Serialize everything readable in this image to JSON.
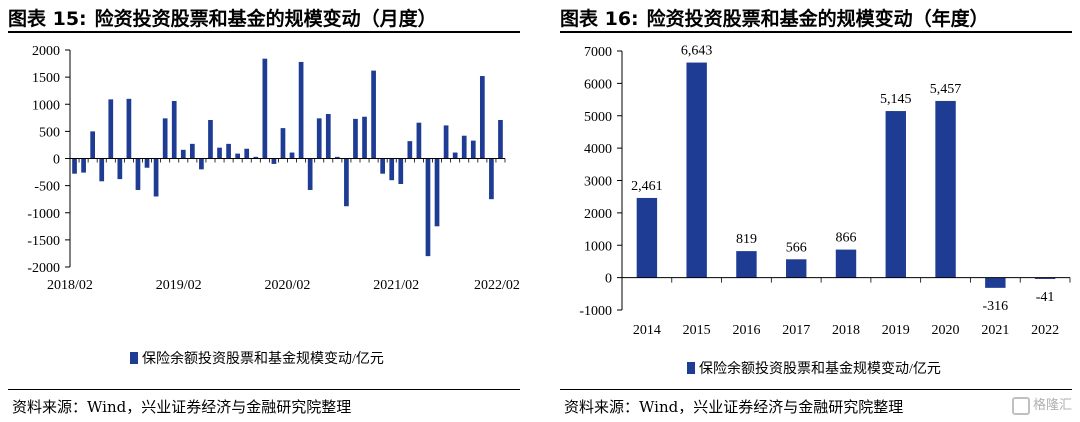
{
  "left": {
    "figure_label": "图表 15:",
    "figure_title": "险资投资股票和基金的规模变动（月度）",
    "source": "资料来源：Wind，兴业证券经济与金融研究院整理"
  },
  "right": {
    "figure_label": "图表 16:",
    "figure_title": "险资投资股票和基金的规模变动（年度）",
    "source": "资料来源：Wind，兴业证券经济与金融研究院整理"
  },
  "watermark": "格隆汇",
  "colors": {
    "bar": "#1f3c94",
    "axis": "#000000",
    "text": "#000000"
  },
  "chart_data": [
    {
      "type": "bar",
      "series": [
        {
          "name": "保险余额投资股票和基金规模变动/亿元",
          "values": [
            -280,
            -260,
            500,
            -420,
            1090,
            -380,
            1100,
            -580,
            -170,
            -700,
            740,
            1060,
            160,
            270,
            -200,
            710,
            200,
            270,
            90,
            180,
            30,
            1840,
            -100,
            560,
            110,
            1780,
            -580,
            740,
            820,
            30,
            -880,
            730,
            770,
            1620,
            -280,
            -400,
            -470,
            320,
            660,
            -1800,
            -1250,
            610,
            110,
            420,
            330,
            1520,
            -750,
            710
          ]
        }
      ],
      "xtick_labels": [
        "2018/02",
        "2019/02",
        "2020/02",
        "2021/02",
        "2022/02"
      ],
      "yticks": [
        -2000,
        -1500,
        -1000,
        -500,
        0,
        500,
        1000,
        1500,
        2000
      ],
      "ylim": [
        -2000,
        2000
      ],
      "legend_position": "bottom"
    },
    {
      "type": "bar",
      "categories": [
        "2014",
        "2015",
        "2016",
        "2017",
        "2018",
        "2019",
        "2020",
        "2021",
        "2022"
      ],
      "series": [
        {
          "name": "保险余额投资股票和基金规模变动/亿元",
          "values": [
            2461,
            6643,
            819,
            566,
            866,
            5145,
            5457,
            -316,
            -41
          ],
          "data_labels": [
            "2,461",
            "6,643",
            "819",
            "566",
            "866",
            "5,145",
            "5,457",
            "-316",
            "-41"
          ]
        }
      ],
      "yticks": [
        -1000,
        0,
        1000,
        2000,
        3000,
        4000,
        5000,
        6000,
        7000
      ],
      "ylim": [
        -1000,
        7000
      ],
      "legend_position": "bottom"
    }
  ]
}
